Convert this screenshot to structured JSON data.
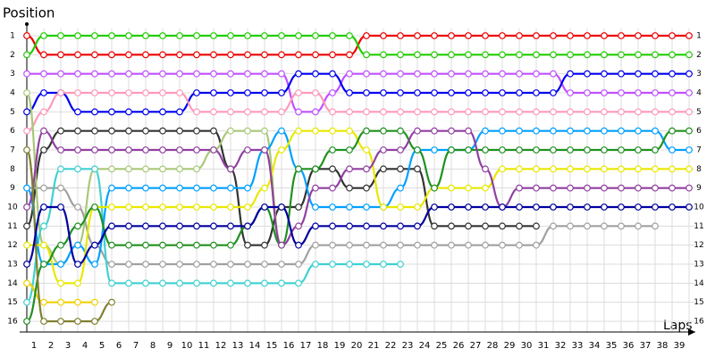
{
  "chart_data": {
    "type": "lap-chart",
    "title": "Position",
    "x_label": "Laps",
    "x": [
      0,
      1,
      2,
      3,
      4,
      5,
      6,
      7,
      8,
      9,
      10,
      11,
      12,
      13,
      14,
      15,
      16,
      17,
      18,
      19,
      20,
      21,
      22,
      23,
      24,
      25,
      26,
      27,
      28,
      29,
      30,
      31,
      32,
      33,
      34,
      35,
      36,
      37,
      38,
      39
    ],
    "xlim": [
      0,
      39
    ],
    "xticks": [
      1,
      2,
      3,
      4,
      5,
      6,
      7,
      8,
      9,
      10,
      11,
      12,
      13,
      14,
      15,
      16,
      17,
      18,
      19,
      20,
      21,
      22,
      23,
      24,
      25,
      26,
      27,
      28,
      29,
      30,
      31,
      32,
      33,
      34,
      35,
      36,
      37,
      38,
      39
    ],
    "ylim": [
      16,
      1
    ],
    "yticks": [
      1,
      2,
      3,
      4,
      5,
      6,
      7,
      8,
      9,
      10,
      11,
      12,
      13,
      14,
      15,
      16
    ],
    "grid": true,
    "series": [
      {
        "color": "#ee0000",
        "values": [
          1,
          2,
          2,
          2,
          2,
          2,
          2,
          2,
          2,
          2,
          2,
          2,
          2,
          2,
          2,
          2,
          2,
          2,
          2,
          2,
          1,
          1,
          1,
          1,
          1,
          1,
          1,
          1,
          1,
          1,
          1,
          1,
          1,
          1,
          1,
          1,
          1,
          1,
          1,
          1
        ]
      },
      {
        "color": "#22cc00",
        "values": [
          2,
          1,
          1,
          1,
          1,
          1,
          1,
          1,
          1,
          1,
          1,
          1,
          1,
          1,
          1,
          1,
          1,
          1,
          1,
          1,
          2,
          2,
          2,
          2,
          2,
          2,
          2,
          2,
          2,
          2,
          2,
          2,
          2,
          2,
          2,
          2,
          2,
          2,
          2,
          2
        ]
      },
      {
        "color": "#c050ff",
        "values": [
          3,
          3,
          3,
          3,
          3,
          3,
          3,
          3,
          3,
          3,
          3,
          3,
          3,
          3,
          3,
          3,
          5,
          5,
          4,
          3,
          3,
          3,
          3,
          3,
          3,
          3,
          3,
          3,
          3,
          3,
          3,
          3,
          4,
          4,
          4,
          4,
          4,
          4,
          4,
          4
        ]
      },
      {
        "color": "#0000ee",
        "values": [
          5,
          4,
          4,
          5,
          5,
          5,
          5,
          5,
          5,
          5,
          4,
          4,
          4,
          4,
          4,
          4,
          3,
          3,
          3,
          4,
          4,
          4,
          4,
          4,
          4,
          4,
          4,
          4,
          4,
          4,
          4,
          4,
          3,
          3,
          3,
          3,
          3,
          3,
          3,
          3
        ]
      },
      {
        "color": "#ff99bb",
        "values": [
          6,
          5,
          4,
          4,
          4,
          4,
          4,
          4,
          4,
          4,
          5,
          5,
          5,
          5,
          5,
          5,
          4,
          4,
          5,
          5,
          5,
          5,
          5,
          5,
          5,
          5,
          5,
          5,
          5,
          5,
          5,
          5,
          5,
          5,
          5,
          5,
          5,
          5,
          5,
          5
        ]
      },
      {
        "color": "#333333",
        "values": [
          11,
          7,
          6,
          6,
          6,
          6,
          6,
          6,
          6,
          6,
          6,
          6,
          8,
          12,
          12,
          10,
          10,
          8,
          8,
          9,
          9,
          8,
          8,
          8,
          11,
          11,
          11,
          11,
          11,
          11,
          11,
          null,
          null,
          null,
          null,
          null,
          null,
          null,
          null,
          null
        ]
      },
      {
        "color": "#a0a0a0",
        "values": [
          9,
          9,
          9,
          10,
          12,
          13,
          13,
          13,
          13,
          13,
          13,
          13,
          13,
          13,
          13,
          13,
          13,
          12,
          12,
          12,
          12,
          12,
          12,
          12,
          12,
          12,
          12,
          12,
          12,
          12,
          12,
          11,
          11,
          11,
          11,
          11,
          11,
          11,
          null,
          null
        ]
      },
      {
        "color": "#a8c878",
        "values": [
          4,
          12,
          13,
          12,
          8,
          8,
          8,
          8,
          8,
          8,
          8,
          7,
          6,
          6,
          6,
          12,
          null,
          null,
          null,
          null,
          null,
          null,
          null,
          null,
          null,
          null,
          null,
          null,
          null,
          null,
          null,
          null,
          null,
          null,
          null,
          null,
          null,
          null,
          null,
          null
        ]
      },
      {
        "color": "#40d0d0",
        "values": [
          15,
          11,
          8,
          8,
          8,
          14,
          14,
          14,
          14,
          14,
          14,
          14,
          14,
          14,
          14,
          14,
          14,
          13,
          13,
          13,
          13,
          13,
          13,
          null,
          null,
          null,
          null,
          null,
          null,
          null,
          null,
          null,
          null,
          null,
          null,
          null,
          null,
          null,
          null,
          null
        ]
      },
      {
        "color": "#00a0ff",
        "values": [
          9,
          13,
          13,
          12,
          13,
          9,
          9,
          9,
          9,
          9,
          9,
          9,
          9,
          9,
          7,
          6,
          8,
          10,
          10,
          10,
          10,
          10,
          9,
          7,
          7,
          7,
          7,
          6,
          6,
          6,
          6,
          6,
          6,
          6,
          6,
          6,
          6,
          6,
          7,
          7
        ]
      },
      {
        "color": "#f0d000",
        "values": [
          14,
          15,
          15,
          15,
          15,
          null,
          null,
          null,
          null,
          null,
          null,
          null,
          null,
          null,
          null,
          null,
          null,
          null,
          null,
          null,
          null,
          null,
          null,
          null,
          null,
          null,
          null,
          null,
          null,
          null,
          null,
          null,
          null,
          null,
          null,
          null,
          null,
          null,
          null,
          null
        ]
      },
      {
        "color": "#e8e800",
        "values": [
          12,
          12,
          14,
          14,
          10,
          10,
          10,
          10,
          10,
          10,
          10,
          10,
          10,
          10,
          9,
          7,
          6,
          6,
          6,
          6,
          7,
          10,
          10,
          10,
          9,
          9,
          9,
          9,
          8,
          8,
          8,
          8,
          8,
          8,
          8,
          8,
          8,
          8,
          8,
          8
        ]
      },
      {
        "color": "#209020",
        "values": [
          16,
          13,
          12,
          11,
          10,
          12,
          12,
          12,
          12,
          12,
          12,
          12,
          12,
          11,
          10,
          12,
          8,
          8,
          7,
          7,
          6,
          6,
          6,
          7,
          9,
          7,
          7,
          7,
          7,
          7,
          7,
          7,
          7,
          7,
          7,
          7,
          7,
          7,
          6,
          6
        ]
      },
      {
        "color": "#9040a0",
        "values": [
          10,
          6,
          7,
          7,
          7,
          7,
          7,
          7,
          7,
          7,
          7,
          7,
          8,
          7,
          7,
          12,
          11,
          9,
          9,
          8,
          8,
          7,
          7,
          6,
          6,
          6,
          6,
          8,
          10,
          9,
          9,
          9,
          9,
          9,
          9,
          9,
          9,
          9,
          9,
          9
        ]
      },
      {
        "color": "#808030",
        "values": [
          7,
          16,
          16,
          16,
          16,
          15,
          null,
          null,
          null,
          null,
          null,
          null,
          null,
          null,
          null,
          null,
          null,
          null,
          null,
          null,
          null,
          null,
          null,
          null,
          null,
          null,
          null,
          null,
          null,
          null,
          null,
          null,
          null,
          null,
          null,
          null,
          null,
          null,
          null,
          null
        ]
      },
      {
        "color": "#0000a0",
        "values": [
          13,
          10,
          10,
          13,
          12,
          11,
          11,
          11,
          11,
          11,
          11,
          11,
          11,
          11,
          10,
          10,
          12,
          11,
          11,
          11,
          11,
          11,
          11,
          11,
          10,
          10,
          10,
          10,
          10,
          10,
          10,
          10,
          10,
          10,
          10,
          10,
          10,
          10,
          10,
          10
        ]
      }
    ]
  }
}
